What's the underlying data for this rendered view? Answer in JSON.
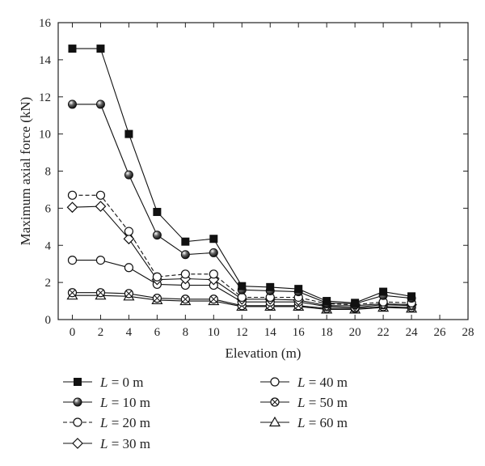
{
  "chart_data": {
    "type": "line",
    "title": "",
    "xlabel": "Elevation (m)",
    "ylabel": "Maximum axial force (kN)",
    "xlim": [
      -1,
      28
    ],
    "ylim": [
      0,
      16
    ],
    "xticks": [
      0,
      2,
      4,
      6,
      8,
      10,
      12,
      14,
      16,
      18,
      20,
      22,
      24,
      26,
      28
    ],
    "yticks": [
      0,
      2,
      4,
      6,
      8,
      10,
      12,
      14,
      16
    ],
    "grid": false,
    "legend_position": "bottom",
    "x": [
      0,
      2,
      4,
      6,
      8,
      10,
      12,
      14,
      16,
      18,
      20,
      22,
      24
    ],
    "series": [
      {
        "name": "L = 0 m",
        "var": "L",
        "rest": " = 0 m",
        "marker": "filled-square",
        "line": "solid",
        "values": [
          14.6,
          14.6,
          10.0,
          5.8,
          4.2,
          4.35,
          1.8,
          1.75,
          1.65,
          1.0,
          0.9,
          1.5,
          1.25
        ]
      },
      {
        "name": "L = 10 m",
        "var": "L",
        "rest": " = 10 m",
        "marker": "shaded-circle",
        "line": "solid",
        "values": [
          11.6,
          11.6,
          7.8,
          4.55,
          3.5,
          3.6,
          1.6,
          1.55,
          1.5,
          0.9,
          0.85,
          1.3,
          1.15
        ]
      },
      {
        "name": "L = 20 m",
        "var": "L",
        "rest": " = 20 m",
        "marker": "open-circle",
        "line": "dashed",
        "values": [
          6.7,
          6.7,
          4.75,
          2.3,
          2.45,
          2.45,
          1.2,
          1.2,
          1.2,
          0.85,
          0.8,
          0.95,
          0.9
        ]
      },
      {
        "name": "L = 30 m",
        "var": "L",
        "rest": " = 30 m",
        "marker": "open-diamond",
        "line": "solid",
        "values": [
          6.05,
          6.1,
          4.35,
          2.15,
          2.2,
          2.15,
          1.1,
          1.1,
          1.05,
          0.75,
          0.75,
          0.85,
          0.8
        ]
      },
      {
        "name": "L = 40 m",
        "var": "L",
        "rest": " = 40 m",
        "marker": "open-circle",
        "line": "solid",
        "values": [
          3.2,
          3.2,
          2.8,
          1.9,
          1.85,
          1.85,
          0.95,
          0.95,
          0.95,
          0.7,
          0.65,
          0.8,
          0.75
        ]
      },
      {
        "name": "L = 50 m",
        "var": "L",
        "rest": " = 50 m",
        "marker": "crossed-circle",
        "line": "solid",
        "values": [
          1.45,
          1.45,
          1.4,
          1.15,
          1.1,
          1.1,
          0.75,
          0.75,
          0.75,
          0.6,
          0.6,
          0.7,
          0.65
        ]
      },
      {
        "name": "L = 60 m",
        "var": "L",
        "rest": " = 60 m",
        "marker": "open-triangle",
        "line": "solid",
        "values": [
          1.3,
          1.3,
          1.25,
          1.05,
          1.0,
          1.0,
          0.7,
          0.7,
          0.7,
          0.55,
          0.55,
          0.65,
          0.6
        ]
      }
    ]
  }
}
